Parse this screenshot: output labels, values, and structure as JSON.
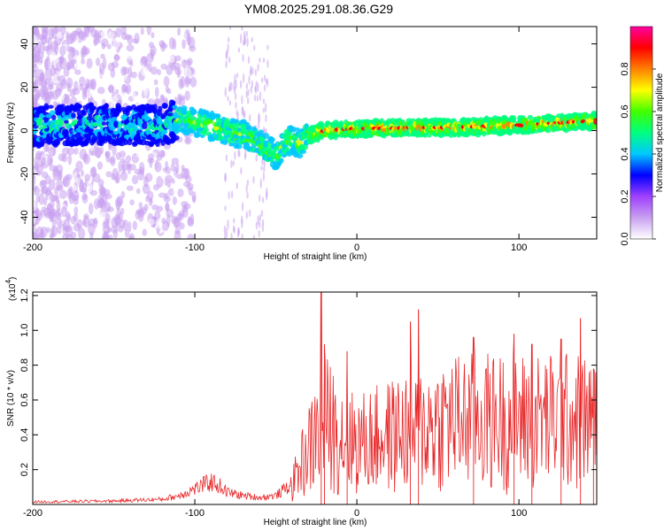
{
  "chart_data": [
    {
      "type": "heatmap",
      "title": "YM08.2025.291.08.36.G29",
      "xlabel": "Height of straight line (km)",
      "ylabel": "Frequency (Hz)",
      "xlim": [
        -200,
        148
      ],
      "ylim": [
        -50,
        48
      ],
      "xticks": [
        -200,
        -100,
        0,
        100
      ],
      "yticks": [
        -40,
        -20,
        0,
        20,
        40
      ],
      "colorbar": {
        "label": "Normalized spectral amplitude",
        "range": [
          0,
          1
        ],
        "ticks": [
          0.0,
          0.2,
          0.4,
          0.6,
          0.8
        ],
        "tick_labels": [
          "0.0",
          "0.2",
          "0.4",
          "0.6",
          "0.8"
        ],
        "colormap": [
          "#ffffff",
          "#c8a0f0",
          "#a040ff",
          "#0000ff",
          "#00c8ff",
          "#00ff80",
          "#40ff00",
          "#ffff00",
          "#ff8000",
          "#ff0000",
          "#ff00a0"
        ]
      },
      "ridge_trace": {
        "x": [
          -200,
          -160,
          -120,
          -112,
          -100,
          -90,
          -80,
          -70,
          -60,
          -55,
          -50,
          -45,
          -40,
          -35,
          -30,
          -20,
          0,
          20,
          40,
          60,
          80,
          100,
          120,
          148
        ],
        "y": [
          2,
          3,
          2,
          5,
          4,
          2,
          0,
          -2,
          -6,
          -8,
          -12,
          -6,
          -4,
          -6,
          -2,
          0,
          1,
          1,
          1.5,
          1.5,
          2,
          2.5,
          3.5,
          4.5
        ]
      }
    },
    {
      "type": "line",
      "title": "",
      "xlabel": "Height of straight line (km)",
      "ylabel": "SNR (10 * v/v)",
      "scale_label": "(x10",
      "scale_exponent": "4",
      "scale_close": ")",
      "xlim": [
        -200,
        148
      ],
      "ylim": [
        0,
        1.22
      ],
      "xticks": [
        -200,
        -100,
        0,
        100
      ],
      "yticks": [
        0.2,
        0.4,
        0.6,
        0.8,
        1.0,
        1.2
      ],
      "ytick_labels": [
        "0.2",
        "0.4",
        "0.6",
        "0.8",
        "1.0",
        "1.2"
      ],
      "color": "#e8282a",
      "envelope": {
        "x": [
          -200,
          -150,
          -120,
          -110,
          -100,
          -90,
          -85,
          -80,
          -70,
          -60,
          -50,
          -40,
          -35,
          -30,
          -25,
          -20,
          -15,
          -10,
          0,
          20,
          40,
          60,
          80,
          100,
          120,
          140,
          148
        ],
        "y": [
          0.015,
          0.02,
          0.03,
          0.05,
          0.09,
          0.13,
          0.11,
          0.07,
          0.05,
          0.04,
          0.05,
          0.12,
          0.25,
          0.35,
          0.45,
          0.55,
          0.5,
          0.45,
          0.4,
          0.45,
          0.5,
          0.55,
          0.55,
          0.55,
          0.55,
          0.55,
          0.5
        ]
      },
      "peaks": [
        {
          "x": -22,
          "y": 1.22
        },
        {
          "x": -20,
          "y": 0.92
        },
        {
          "x": -6,
          "y": 0.88
        },
        {
          "x": 38,
          "y": 1.12
        },
        {
          "x": 33,
          "y": 1.05
        },
        {
          "x": 72,
          "y": 0.96
        },
        {
          "x": 97,
          "y": 0.98
        },
        {
          "x": 108,
          "y": 0.92
        },
        {
          "x": 126,
          "y": 0.95
        },
        {
          "x": 138,
          "y": 1.07
        },
        {
          "x": 146,
          "y": 0.78
        }
      ]
    }
  ]
}
